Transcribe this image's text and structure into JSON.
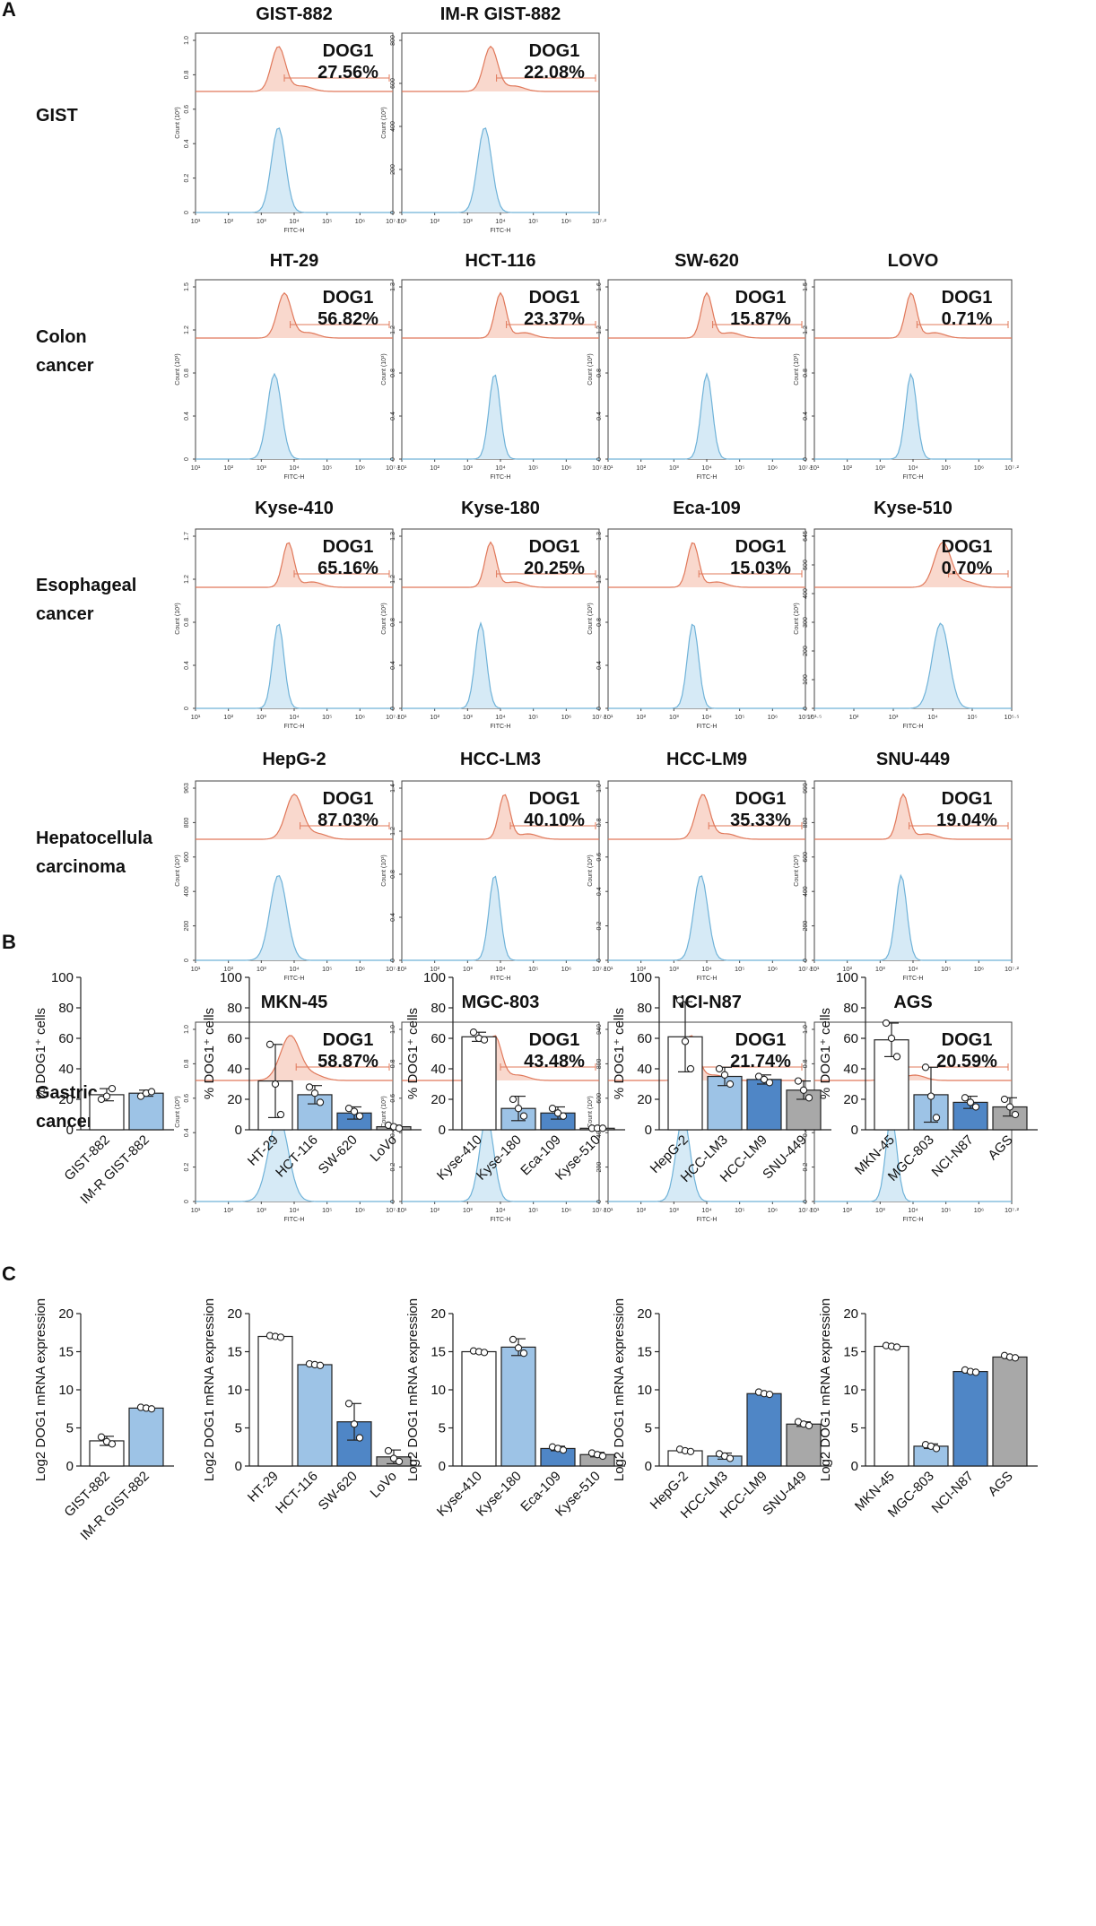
{
  "figure": {
    "panels": [
      "A",
      "B",
      "C"
    ],
    "colors": {
      "red": "#e0785a",
      "red_fill": "#f9d8cd",
      "blue": "#6fb2d8",
      "blue_fill": "#d6eaf6",
      "bar_white": "#ffffff",
      "bar_light": "#9dc3e6",
      "bar_mid": "#4f86c6",
      "bar_gray": "#a8a8a8"
    }
  },
  "chart_data": [
    {
      "type": "histogram",
      "panel": "A",
      "title": "Flow cytometry of DOG1 expression",
      "marker_label": "DOG1",
      "xlabel": "FITC-H",
      "ylabel": "Count (10³)",
      "rows": [
        {
          "group": [
            "GIST"
          ],
          "cells": [
            {
              "name": "GIST-882",
              "pct": "27.56%",
              "yticks": [
                "0",
                "0.2",
                "0.4",
                "0.6",
                "0.8",
                "1.0"
              ],
              "xticks": [
                "10¹",
                "10²",
                "10³",
                "10⁴",
                "10⁵",
                "10⁶",
                "10⁷·²"
              ],
              "peak_red": 0.42,
              "peak_blue": 0.42,
              "spread": 0.05
            },
            {
              "name": "IM-R GIST-882",
              "pct": "22.08%",
              "yticks": [
                "0",
                "200",
                "400",
                "600",
                "800"
              ],
              "xticks": [
                "10¹",
                "10²",
                "10³",
                "10⁴",
                "10⁵",
                "10⁶",
                "10⁷·²"
              ],
              "peak_red": 0.45,
              "peak_blue": 0.42,
              "spread": 0.05
            }
          ]
        },
        {
          "group": [
            "Colon",
            "cancer"
          ],
          "cells": [
            {
              "name": "HT-29",
              "pct": "56.82%",
              "yticks": [
                "0",
                "0.4",
                "0.8",
                "1.2",
                "1.5"
              ],
              "xticks": [
                "10¹",
                "10²",
                "10³",
                "10⁴",
                "10⁵",
                "10⁶",
                "10⁷·²"
              ],
              "peak_red": 0.45,
              "peak_blue": 0.4,
              "spread": 0.05
            },
            {
              "name": "HCT-116",
              "pct": "23.37%",
              "yticks": [
                "0",
                "0.4",
                "0.8",
                "1.2",
                "1.3"
              ],
              "xticks": [
                "10¹",
                "10²",
                "10³",
                "10⁴",
                "10⁵",
                "10⁶",
                "10⁷·²"
              ],
              "peak_red": 0.5,
              "peak_blue": 0.47,
              "spread": 0.04
            },
            {
              "name": "SW-620",
              "pct": "15.87%",
              "yticks": [
                "0",
                "0.4",
                "0.8",
                "1.2",
                "1.6"
              ],
              "xticks": [
                "10¹",
                "10²",
                "10³",
                "10⁴",
                "10⁵",
                "10⁶",
                "10⁷·²"
              ],
              "peak_red": 0.5,
              "peak_blue": 0.5,
              "spread": 0.04
            },
            {
              "name": "LOVO",
              "pct": "0.71%",
              "yticks": [
                "0",
                "0.4",
                "0.8",
                "1.2",
                "1.5"
              ],
              "xticks": [
                "10¹",
                "10²",
                "10³",
                "10⁴",
                "10⁵",
                "10⁶",
                "10⁷·²"
              ],
              "peak_red": 0.49,
              "peak_blue": 0.49,
              "spread": 0.04
            }
          ]
        },
        {
          "group": [
            "Esophageal",
            "cancer"
          ],
          "cells": [
            {
              "name": "Kyse-410",
              "pct": "65.16%",
              "yticks": [
                "0",
                "0.4",
                "0.8",
                "1.2",
                "1.7"
              ],
              "xticks": [
                "10¹",
                "10²",
                "10³",
                "10⁴",
                "10⁵",
                "10⁶",
                "10⁷·²"
              ],
              "peak_red": 0.47,
              "peak_blue": 0.42,
              "spread": 0.04
            },
            {
              "name": "Kyse-180",
              "pct": "20.25%",
              "yticks": [
                "0",
                "0.4",
                "0.8",
                "1.2",
                "1.3"
              ],
              "xticks": [
                "10¹",
                "10²",
                "10³",
                "10⁴",
                "10⁵",
                "10⁶",
                "10⁷·²"
              ],
              "peak_red": 0.45,
              "peak_blue": 0.4,
              "spread": 0.04
            },
            {
              "name": "Eca-109",
              "pct": "15.03%",
              "yticks": [
                "0",
                "0.4",
                "0.8",
                "1.2",
                "1.3"
              ],
              "xticks": [
                "10¹",
                "10²",
                "10³",
                "10⁴",
                "10⁵",
                "10⁶",
                "10⁷·²"
              ],
              "peak_red": 0.43,
              "peak_blue": 0.43,
              "spread": 0.04
            },
            {
              "name": "Kyse-510",
              "pct": "0.70%",
              "yticks": [
                "0",
                "100",
                "200",
                "300",
                "400",
                "500",
                "645"
              ],
              "xticks": [
                "10¹·⁵",
                "10²",
                "10³",
                "10⁴",
                "10⁵",
                "10⁵·⁵"
              ],
              "peak_red": 0.65,
              "peak_blue": 0.64,
              "spread": 0.06
            }
          ]
        },
        {
          "group": [
            "Hepatocellula",
            "carcinoma"
          ],
          "cells": [
            {
              "name": "HepG-2",
              "pct": "87.03%",
              "yticks": [
                "0",
                "200",
                "400",
                "600",
                "800",
                "963"
              ],
              "xticks": [
                "10¹",
                "10²",
                "10³",
                "10⁴",
                "10⁵",
                "10⁶",
                "10⁷·²"
              ],
              "peak_red": 0.5,
              "peak_blue": 0.42,
              "spread": 0.06
            },
            {
              "name": "HCC-LM3",
              "pct": "40.10%",
              "yticks": [
                "0",
                "0.4",
                "0.8",
                "1.2",
                "1.4"
              ],
              "xticks": [
                "10¹",
                "10²",
                "10³",
                "10⁴",
                "10⁵",
                "10⁶",
                "10⁷·²"
              ],
              "peak_red": 0.52,
              "peak_blue": 0.47,
              "spread": 0.04
            },
            {
              "name": "HCC-LM9",
              "pct": "35.33%",
              "yticks": [
                "0",
                "0.2",
                "0.4",
                "0.6",
                "0.8",
                "1.0"
              ],
              "xticks": [
                "10¹",
                "10²",
                "10³",
                "10⁴",
                "10⁵",
                "10⁶",
                "10⁷·²"
              ],
              "peak_red": 0.48,
              "peak_blue": 0.47,
              "spread": 0.05
            },
            {
              "name": "SNU-449",
              "pct": "19.04%",
              "yticks": [
                "0",
                "200",
                "400",
                "600",
                "800",
                "999"
              ],
              "xticks": [
                "10¹",
                "10²",
                "10³",
                "10⁴",
                "10⁵",
                "10⁶",
                "10⁷·²"
              ],
              "peak_red": 0.45,
              "peak_blue": 0.44,
              "spread": 0.04
            }
          ]
        },
        {
          "group": [
            "Gastric",
            "cancer"
          ],
          "cells": [
            {
              "name": "MKN-45",
              "pct": "58.87%",
              "yticks": [
                "0",
                "0.2",
                "0.4",
                "0.6",
                "0.8",
                "1.0"
              ],
              "xticks": [
                "10¹",
                "10²",
                "10³",
                "10⁴",
                "10⁵",
                "10⁶",
                "10⁷·²"
              ],
              "peak_red": 0.48,
              "peak_blue": 0.42,
              "spread": 0.07
            },
            {
              "name": "MGC-803",
              "pct": "43.48%",
              "yticks": [
                "0",
                "0.2",
                "0.4",
                "0.6",
                "0.8",
                "1.0"
              ],
              "xticks": [
                "10¹",
                "10²",
                "10³",
                "10⁴",
                "10⁵",
                "10⁶",
                "10⁷·²"
              ],
              "peak_red": 0.47,
              "peak_blue": 0.43,
              "spread": 0.05
            },
            {
              "name": "NCI-N87",
              "pct": "21.74%",
              "yticks": [
                "0",
                "200",
                "400",
                "600",
                "800",
                "940"
              ],
              "xticks": [
                "10¹",
                "10²",
                "10³",
                "10⁴",
                "10⁵",
                "10⁶",
                "10⁷·²"
              ],
              "peak_red": 0.42,
              "peak_blue": 0.38,
              "spread": 0.05
            },
            {
              "name": "AGS",
              "pct": "20.59%",
              "yticks": [
                "0",
                "0.2",
                "0.4",
                "0.6",
                "0.8",
                "1.0"
              ],
              "xticks": [
                "10¹",
                "10²",
                "10³",
                "10⁴",
                "10⁵",
                "10⁶",
                "10⁷·²"
              ],
              "peak_red": 0.39,
              "peak_blue": 0.39,
              "spread": 0.04
            }
          ]
        }
      ]
    },
    {
      "type": "bar",
      "panel": "B",
      "ylabel": "% DOG1⁺ cells",
      "ylim": [
        0,
        100
      ],
      "yticks": [
        0,
        20,
        40,
        60,
        80,
        100
      ],
      "groups": [
        {
          "categories": [
            "GIST-882",
            "IM-R GIST-882"
          ],
          "values": [
            23,
            24
          ],
          "errors": [
            4,
            2
          ],
          "points": [
            [
              20,
              22,
              27
            ],
            [
              22,
              24,
              25
            ]
          ],
          "colors": [
            "white",
            "light"
          ]
        },
        {
          "categories": [
            "HT-29",
            "HCT-116",
            "SW-620",
            "LoVo"
          ],
          "values": [
            32,
            23,
            11,
            2
          ],
          "errors": [
            24,
            6,
            4,
            1
          ],
          "points": [
            [
              56,
              30,
              10
            ],
            [
              28,
              24,
              18
            ],
            [
              14,
              12,
              9
            ],
            [
              3,
              2,
              1
            ]
          ],
          "colors": [
            "white",
            "light",
            "mid",
            "gray"
          ]
        },
        {
          "categories": [
            "Kyse-410",
            "Kyse-180",
            "Eca-109",
            "Kyse-510"
          ],
          "values": [
            61,
            14,
            11,
            1
          ],
          "errors": [
            3,
            8,
            4,
            0.5
          ],
          "points": [
            [
              64,
              60,
              59
            ],
            [
              20,
              14,
              9
            ],
            [
              14,
              11,
              9
            ],
            [
              1,
              1,
              1
            ]
          ],
          "colors": [
            "white",
            "light",
            "mid",
            "gray"
          ]
        },
        {
          "categories": [
            "HepG-2",
            "HCC-LM3",
            "HCC-LM9",
            "SNU-449"
          ],
          "values": [
            61,
            35,
            33,
            26
          ],
          "errors": [
            23,
            6,
            3,
            6
          ],
          "points": [
            [
              85,
              58,
              40
            ],
            [
              40,
              36,
              30
            ],
            [
              35,
              33,
              31
            ],
            [
              32,
              26,
              21
            ]
          ],
          "colors": [
            "white",
            "light",
            "mid",
            "gray"
          ]
        },
        {
          "categories": [
            "MKN-45",
            "MGC-803",
            "NCI-N87",
            "AGS"
          ],
          "values": [
            59,
            23,
            18,
            15
          ],
          "errors": [
            11,
            18,
            4,
            6
          ],
          "points": [
            [
              70,
              60,
              48
            ],
            [
              41,
              22,
              8
            ],
            [
              21,
              18,
              15
            ],
            [
              20,
              15,
              10
            ]
          ],
          "colors": [
            "white",
            "light",
            "mid",
            "gray"
          ]
        }
      ]
    },
    {
      "type": "bar",
      "panel": "C",
      "ylabel": "Log2 DOG1 mRNA expression",
      "ylim": [
        0,
        20
      ],
      "yticks": [
        0,
        5,
        10,
        15,
        20
      ],
      "groups": [
        {
          "categories": [
            "GIST-882",
            "IM-R GIST-882"
          ],
          "values": [
            3.3,
            7.6
          ],
          "errors": [
            0.6,
            0.2
          ],
          "points": [
            [
              3.8,
              3.2,
              2.9
            ],
            [
              7.7,
              7.6,
              7.5
            ]
          ],
          "colors": [
            "white",
            "light"
          ]
        },
        {
          "categories": [
            "HT-29",
            "HCT-116",
            "SW-620",
            "LoVo"
          ],
          "values": [
            17.0,
            13.3,
            5.8,
            1.2
          ],
          "errors": [
            0.2,
            0.2,
            2.4,
            0.9
          ],
          "points": [
            [
              17.1,
              17.0,
              16.9
            ],
            [
              13.4,
              13.3,
              13.2
            ],
            [
              8.2,
              5.5,
              3.7
            ],
            [
              2.0,
              1.0,
              0.6
            ]
          ],
          "colors": [
            "white",
            "light",
            "mid",
            "gray"
          ]
        },
        {
          "categories": [
            "Kyse-410",
            "Kyse-180",
            "Eca-109",
            "Kyse-510"
          ],
          "values": [
            15.0,
            15.6,
            2.3,
            1.5
          ],
          "errors": [
            0.2,
            1.1,
            0.3,
            0.3
          ],
          "points": [
            [
              15.1,
              15.0,
              14.9
            ],
            [
              16.6,
              15.5,
              14.8
            ],
            [
              2.5,
              2.3,
              2.1
            ],
            [
              1.7,
              1.5,
              1.3
            ]
          ],
          "colors": [
            "white",
            "light",
            "mid",
            "gray"
          ]
        },
        {
          "categories": [
            "HepG-2",
            "HCC-LM3",
            "HCC-LM9",
            "SNU-449"
          ],
          "values": [
            2.0,
            1.3,
            9.5,
            5.5
          ],
          "errors": [
            0.2,
            0.4,
            0.2,
            0.3
          ],
          "points": [
            [
              2.2,
              2.0,
              1.9
            ],
            [
              1.6,
              1.3,
              1.0
            ],
            [
              9.7,
              9.5,
              9.4
            ],
            [
              5.8,
              5.5,
              5.3
            ]
          ],
          "colors": [
            "white",
            "light",
            "mid",
            "gray"
          ]
        },
        {
          "categories": [
            "MKN-45",
            "MGC-803",
            "NCI-N87",
            "AGS"
          ],
          "values": [
            15.7,
            2.6,
            12.4,
            14.3
          ],
          "errors": [
            0.1,
            0.3,
            0.2,
            0.2
          ],
          "points": [
            [
              15.8,
              15.7,
              15.6
            ],
            [
              2.8,
              2.6,
              2.3
            ],
            [
              12.6,
              12.4,
              12.3
            ],
            [
              14.5,
              14.3,
              14.2
            ]
          ],
          "colors": [
            "white",
            "light",
            "mid",
            "gray"
          ]
        }
      ]
    }
  ]
}
